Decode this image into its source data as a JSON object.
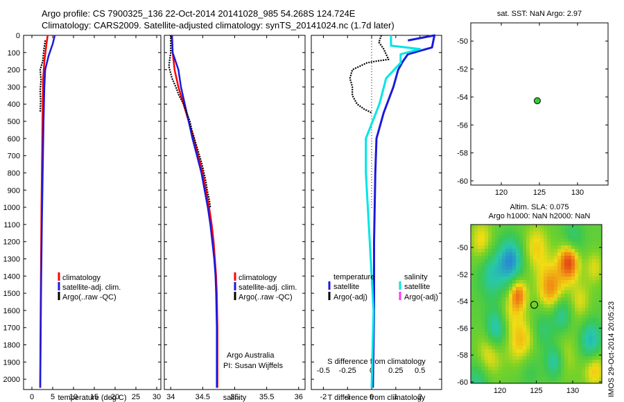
{
  "header": {
    "line1": "Argo profile: CS 7900325_136 22-Oct-2014 20141028_985 54.268S 124.724E",
    "line2": "Climatology: CARS2009. Satellite-adjusted climatology: synTS_20141024.nc (1.7d later)"
  },
  "side_stamp": "IMOS 29-Oct-2014 20:05:23",
  "colors": {
    "climatology": "#ff0000",
    "satellite": "#1a1adc",
    "argo": "#000000",
    "sat_salinity": "#00e5e5",
    "argo_salinity_adj": "#ff33ff",
    "marker_fill": "#33cc33"
  },
  "chart_data": [
    {
      "type": "line",
      "panel": "temperature",
      "xlabel": "temperature (deg C)",
      "xticks": [
        0,
        5,
        10,
        15,
        20,
        25,
        30
      ],
      "xlim": [
        -2,
        31
      ],
      "ylim": [
        2060,
        0
      ],
      "yticks": [
        0,
        100,
        200,
        300,
        400,
        500,
        600,
        700,
        800,
        900,
        1000,
        1100,
        1200,
        1300,
        1400,
        1500,
        1600,
        1700,
        1800,
        1900,
        2000
      ],
      "legend": [
        "climatology",
        "satellite-adj. clim.",
        "Argo(..raw -QC)"
      ],
      "series": [
        {
          "role": "climatology",
          "points": [
            [
              3.8,
              0
            ],
            [
              3.5,
              50
            ],
            [
              3.0,
              150
            ],
            [
              2.7,
              250
            ],
            [
              2.6,
              400
            ],
            [
              2.5,
              600
            ],
            [
              2.4,
              800
            ],
            [
              2.3,
              1000
            ],
            [
              2.2,
              1300
            ],
            [
              2.1,
              1600
            ],
            [
              2.0,
              2000
            ],
            [
              2.0,
              2050
            ]
          ]
        },
        {
          "role": "satellite",
          "points": [
            [
              5.5,
              0
            ],
            [
              5.0,
              50
            ],
            [
              4.0,
              120
            ],
            [
              3.2,
              200
            ],
            [
              3.0,
              300
            ],
            [
              2.8,
              500
            ],
            [
              2.6,
              800
            ],
            [
              2.4,
              1100
            ],
            [
              2.2,
              1500
            ],
            [
              2.1,
              1800
            ],
            [
              2.0,
              2050
            ]
          ]
        },
        {
          "role": "argo",
          "points": [
            [
              3.2,
              30
            ],
            [
              2.9,
              80
            ],
            [
              2.6,
              150
            ],
            [
              2.0,
              200
            ],
            [
              2.2,
              260
            ],
            [
              2.0,
              320
            ],
            [
              2.1,
              380
            ],
            [
              2.0,
              450
            ]
          ]
        }
      ]
    },
    {
      "type": "line",
      "panel": "salinity",
      "xlabel": "salinity",
      "xticks": [
        34,
        34.5,
        35,
        35.5,
        36
      ],
      "xlim": [
        33.9,
        36.1
      ],
      "ylim": [
        2060,
        0
      ],
      "legend": [
        "climatology",
        "satellite-adj. clim.",
        "Argo(..raw -QC)"
      ],
      "annotation": [
        "Argo Australia",
        "PI: Susan Wijffels"
      ],
      "series": [
        {
          "role": "climatology",
          "points": [
            [
              34.02,
              0
            ],
            [
              34.03,
              100
            ],
            [
              34.06,
              200
            ],
            [
              34.12,
              300
            ],
            [
              34.2,
              400
            ],
            [
              34.28,
              500
            ],
            [
              34.36,
              600
            ],
            [
              34.43,
              700
            ],
            [
              34.5,
              800
            ],
            [
              34.55,
              900
            ],
            [
              34.6,
              1000
            ],
            [
              34.64,
              1100
            ],
            [
              34.67,
              1200
            ],
            [
              34.69,
              1300
            ],
            [
              34.71,
              1400
            ],
            [
              34.72,
              1500
            ],
            [
              34.73,
              1700
            ],
            [
              34.73,
              1900
            ],
            [
              34.73,
              2050
            ]
          ]
        },
        {
          "role": "satellite",
          "points": [
            [
              34.02,
              0
            ],
            [
              34.03,
              100
            ],
            [
              34.12,
              200
            ],
            [
              34.16,
              300
            ],
            [
              34.22,
              400
            ],
            [
              34.28,
              500
            ],
            [
              34.34,
              600
            ],
            [
              34.41,
              700
            ],
            [
              34.48,
              800
            ],
            [
              34.53,
              900
            ],
            [
              34.58,
              1000
            ],
            [
              34.62,
              1100
            ],
            [
              34.65,
              1200
            ],
            [
              34.68,
              1300
            ],
            [
              34.7,
              1400
            ],
            [
              34.71,
              1500
            ],
            [
              34.72,
              1700
            ],
            [
              34.72,
              1900
            ],
            [
              34.72,
              2050
            ]
          ]
        },
        {
          "role": "argo",
          "points": [
            [
              34.0,
              0
            ],
            [
              34.0,
              50
            ],
            [
              34.0,
              100
            ],
            [
              33.97,
              180
            ],
            [
              34.02,
              250
            ],
            [
              34.08,
              300
            ],
            [
              34.13,
              350
            ],
            [
              34.2,
              400
            ],
            [
              34.25,
              450
            ],
            [
              34.3,
              500
            ],
            [
              34.33,
              550
            ],
            [
              34.37,
              600
            ],
            [
              34.41,
              650
            ],
            [
              34.45,
              700
            ],
            [
              34.49,
              750
            ],
            [
              34.52,
              800
            ],
            [
              34.55,
              850
            ],
            [
              34.57,
              900
            ],
            [
              34.6,
              950
            ],
            [
              34.62,
              1000
            ]
          ]
        }
      ]
    },
    {
      "type": "line",
      "panel": "difference",
      "xlabel": "T difference from climatology",
      "xticks": [
        -2,
        -1,
        0,
        1,
        2
      ],
      "xlim": [
        -2.5,
        2.9
      ],
      "xlabel2": "S difference from climatology",
      "xticks2": [
        -0.5,
        -0.25,
        0,
        0.25,
        0.5
      ],
      "xticks2_labels": [
        "-0.5",
        "-0.25",
        "0",
        "0.25",
        "0.5"
      ],
      "ylim": [
        2060,
        0
      ],
      "legend_groups": [
        "temperature",
        "salinity"
      ],
      "legend": [
        "satellite",
        "Argo(-adj)",
        "satellite",
        "Argo(-adj)"
      ],
      "series": [
        {
          "role": "t_satellite",
          "points": [
            [
              1.5,
              30
            ],
            [
              2.6,
              0
            ],
            [
              2.5,
              70
            ],
            [
              2.0,
              90
            ],
            [
              1.5,
              110
            ],
            [
              1.3,
              150
            ],
            [
              1.1,
              200
            ],
            [
              0.9,
              300
            ],
            [
              0.5,
              450
            ],
            [
              0.2,
              600
            ],
            [
              0.15,
              800
            ],
            [
              0.1,
              1200
            ],
            [
              0.1,
              1600
            ],
            [
              0.05,
              2050
            ]
          ]
        },
        {
          "role": "s_satellite",
          "points": [
            [
              0.2,
              0
            ],
            [
              0.2,
              60
            ],
            [
              0.5,
              80
            ],
            [
              0.3,
              110
            ],
            [
              0.3,
              160
            ],
            [
              0.15,
              250
            ],
            [
              0.08,
              400
            ],
            [
              -0.06,
              600
            ],
            [
              -0.06,
              800
            ],
            [
              -0.02,
              1200
            ],
            [
              0.02,
              1600
            ],
            [
              0.0,
              2050
            ]
          ]
        },
        {
          "role": "t_argo",
          "points": [
            [
              0.4,
              0
            ],
            [
              0.3,
              40
            ],
            [
              0.5,
              80
            ],
            [
              0.7,
              140
            ],
            [
              0.2,
              150
            ],
            [
              -0.2,
              160
            ],
            [
              -0.5,
              180
            ],
            [
              -0.8,
              200
            ],
            [
              -0.9,
              250
            ],
            [
              -0.8,
              300
            ],
            [
              -0.8,
              350
            ],
            [
              -0.6,
              400
            ],
            [
              -0.3,
              430
            ],
            [
              0.0,
              450
            ]
          ]
        }
      ]
    },
    {
      "type": "scatter",
      "panel": "map_sst",
      "title": "sat. SST: NaN Argo: 2.97",
      "xticks": [
        120,
        125,
        130
      ],
      "xlim": [
        116,
        134
      ],
      "yticks": [
        -50,
        -52,
        -54,
        -56,
        -58,
        -60
      ],
      "ylim": [
        -60.3,
        -48.7
      ],
      "points": [
        [
          124.72,
          -54.27
        ]
      ]
    },
    {
      "type": "heatmap",
      "panel": "map_sla",
      "title_lines": [
        "Altim. SLA: 0.075",
        "Argo h1000: NaN h2000: NaN"
      ],
      "xticks": [
        120,
        125,
        130
      ],
      "xlim": [
        116,
        134
      ],
      "yticks": [
        -50,
        -52,
        -54,
        -56,
        -58,
        -60
      ],
      "ylim": [
        -60.1,
        -48.3
      ],
      "marker": [
        124.72,
        -54.27
      ],
      "blobs": [
        [
          117.5,
          -49.5,
          1.6,
          0.5
        ],
        [
          119,
          -52,
          1.8,
          -0.6
        ],
        [
          121,
          -55,
          1.5,
          0.3
        ],
        [
          123,
          -57,
          2.0,
          0.6
        ],
        [
          121.5,
          -51,
          1.6,
          -1.0
        ],
        [
          125,
          -50,
          1.8,
          0.5
        ],
        [
          127,
          -53,
          1.8,
          0.8
        ],
        [
          129.5,
          -51,
          1.4,
          1.2
        ],
        [
          131,
          -54,
          1.5,
          0.4
        ],
        [
          126,
          -56,
          1.6,
          -0.4
        ],
        [
          129,
          -58,
          2.0,
          0.3
        ],
        [
          132.5,
          -57,
          1.5,
          -0.8
        ],
        [
          118.5,
          -58,
          1.8,
          0.5
        ],
        [
          124,
          -59,
          1.5,
          -0.3
        ],
        [
          130,
          -49.5,
          1.4,
          -0.5
        ],
        [
          133,
          -51.5,
          1.3,
          0.4
        ],
        [
          119.5,
          -56,
          1.4,
          -0.8
        ],
        [
          127.5,
          -58.5,
          1.2,
          -0.7
        ],
        [
          122.5,
          -53.5,
          1.2,
          0.9
        ],
        [
          128.5,
          -55,
          1.3,
          -0.6
        ],
        [
          117,
          -60,
          1.6,
          -0.5
        ],
        [
          133,
          -59,
          1.5,
          0.6
        ]
      ]
    }
  ]
}
